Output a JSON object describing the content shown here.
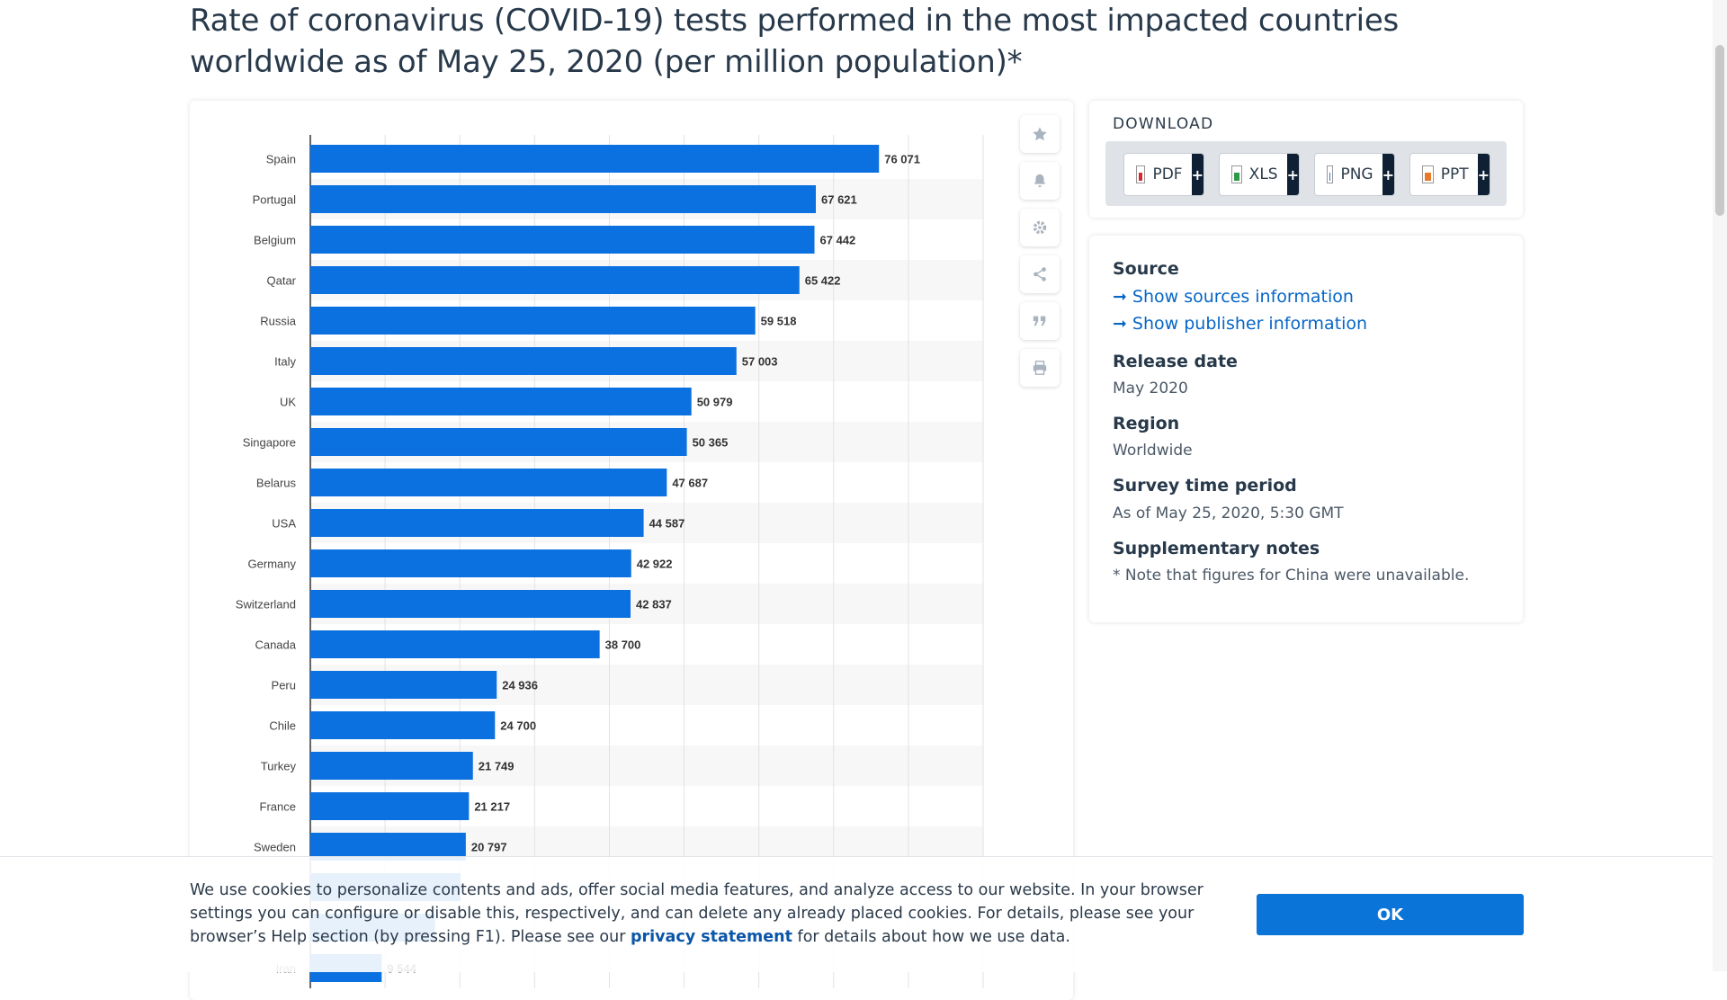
{
  "title": "Rate of coronavirus (COVID-19) tests performed in the most impacted countries worldwide as of May 25, 2020 (per million population)*",
  "toolbar": {
    "icons": [
      "star-icon",
      "bell-icon",
      "gear-icon",
      "share-icon",
      "quote-icon",
      "print-icon"
    ]
  },
  "download": {
    "title": "DOWNLOAD",
    "buttons": [
      {
        "label": "PDF",
        "plus": "+"
      },
      {
        "label": "XLS",
        "plus": "+"
      },
      {
        "label": "PNG",
        "plus": "+"
      },
      {
        "label": "PPT",
        "plus": "+"
      }
    ]
  },
  "info": {
    "source_heading": "Source",
    "show_sources": "Show sources information",
    "show_publisher": "Show publisher information",
    "release_heading": "Release date",
    "release_value": "May 2020",
    "region_heading": "Region",
    "region_value": "Worldwide",
    "survey_heading": "Survey time period",
    "survey_value": "As of May 25, 2020, 5:30 GMT",
    "notes_heading": "Supplementary notes",
    "notes_value": "* Note that figures for China were unavailable."
  },
  "cookie": {
    "text_before": "We use cookies to personalize contents and ads, offer social media features, and analyze access to our website. In your browser settings you can configure or disable this, respectively, and can delete any already placed cookies. For details, please see your browser’s Help section (by pressing F1). Please see our ",
    "link": "privacy statement",
    "text_after": " for details about how we use data.",
    "ok_label": "OK"
  },
  "colors": {
    "bar": "#0b70e0",
    "accent_link": "#0666c6",
    "ok_button": "#0a74d8"
  },
  "chart_data": {
    "type": "bar",
    "orientation": "horizontal",
    "categories": [
      "Spain",
      "Portugal",
      "Belgium",
      "Qatar",
      "Russia",
      "Italy",
      "UK",
      "Singapore",
      "Belarus",
      "USA",
      "Germany",
      "Switzerland",
      "Canada",
      "Peru",
      "Chile",
      "Turkey",
      "France",
      "Sweden",
      "",
      "",
      "Iran"
    ],
    "values": [
      76071,
      67621,
      67442,
      65422,
      59518,
      57003,
      50979,
      50365,
      47687,
      44587,
      42922,
      42837,
      38700,
      24936,
      24700,
      21749,
      21217,
      20797,
      20100,
      16700,
      9544
    ],
    "value_labels": [
      "76 071",
      "67 621",
      "67 442",
      "65 422",
      "59 518",
      "57 003",
      "50 979",
      "50 365",
      "47 687",
      "44 587",
      "42 922",
      "42 837",
      "38 700",
      "24 936",
      "24 700",
      "21 749",
      "21 217",
      "20 797",
      "",
      "",
      "9 544"
    ],
    "xlim": [
      0,
      90000
    ],
    "grid": true,
    "legend": "none"
  }
}
